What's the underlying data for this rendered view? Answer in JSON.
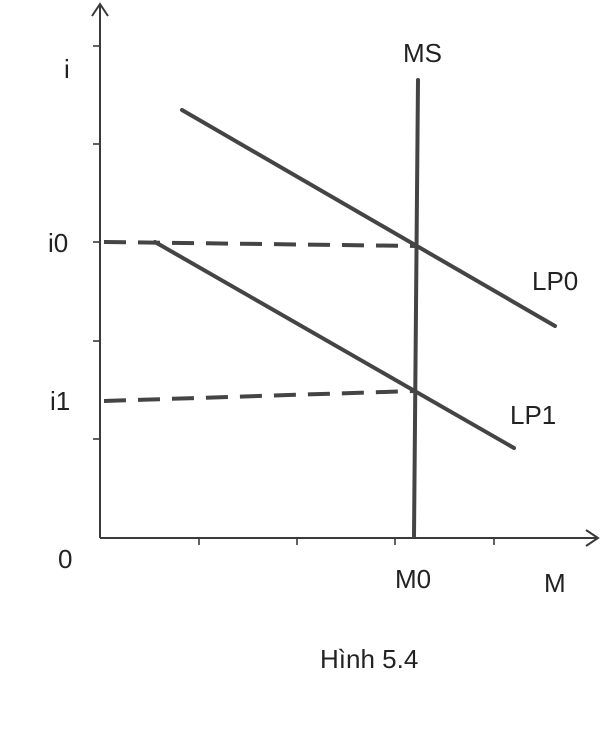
{
  "diagram": {
    "y_axis_label": "i",
    "x_axis_label": "M",
    "origin_label": "0",
    "y_ticks": [
      "i0",
      "i1"
    ],
    "x_ticks": [
      "M0"
    ],
    "curves": {
      "ms": "MS",
      "lp0": "LP0",
      "lp1": "LP1"
    },
    "caption": "Hình 5.4",
    "colors": {
      "line": "#444444",
      "axis": "#3a3a3a",
      "text": "#222222"
    }
  }
}
